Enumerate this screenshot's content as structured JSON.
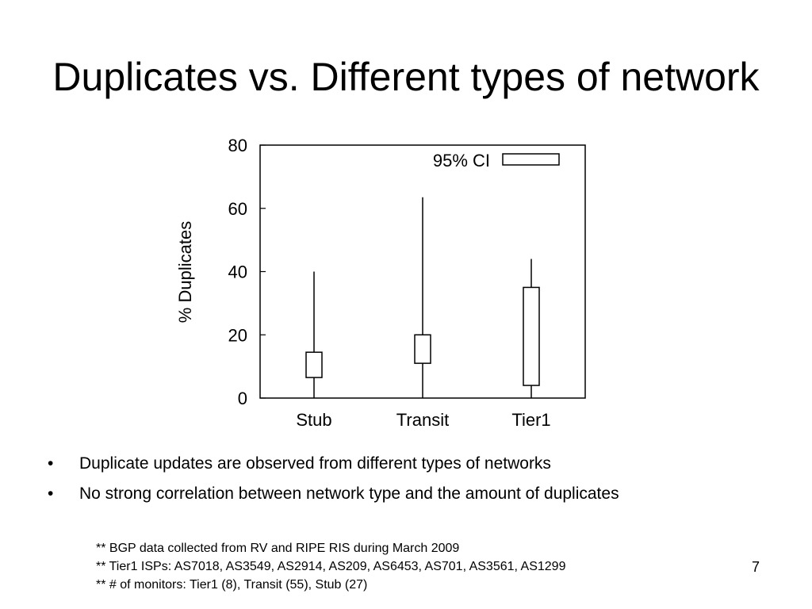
{
  "slide": {
    "title": "Duplicates vs. Different types of network",
    "number": "7"
  },
  "chart_data": {
    "type": "boxplot",
    "ylabel": "% Duplicates",
    "ylim": [
      0,
      80
    ],
    "yticks": [
      "0",
      "20",
      "40",
      "60",
      "80"
    ],
    "categories": [
      "Stub",
      "Transit",
      "Tier1"
    ],
    "legend": {
      "label": "95% CI",
      "position": "top-right"
    },
    "series": [
      {
        "category": "Stub",
        "whisker_low": 0,
        "box_low": 6.5,
        "box_high": 14.5,
        "whisker_high": 40
      },
      {
        "category": "Transit",
        "whisker_low": 0,
        "box_low": 11,
        "box_high": 20,
        "whisker_high": 63.5
      },
      {
        "category": "Tier1",
        "whisker_low": 0,
        "box_low": 4,
        "box_high": 35,
        "whisker_high": 44
      }
    ],
    "grid": false
  },
  "bullets": [
    {
      "marker": "•",
      "text": "Duplicate updates are observed from different types of networks"
    },
    {
      "marker": "•",
      "text": "No strong correlation between network type and the amount of duplicates"
    }
  ],
  "notes": [
    "** BGP data collected from RV and RIPE RIS during March 2009",
    "** Tier1 ISPs: AS7018, AS3549, AS2914, AS209, AS6453, AS701, AS3561, AS1299",
    "** # of monitors: Tier1 (8), Transit (55), Stub (27)"
  ]
}
